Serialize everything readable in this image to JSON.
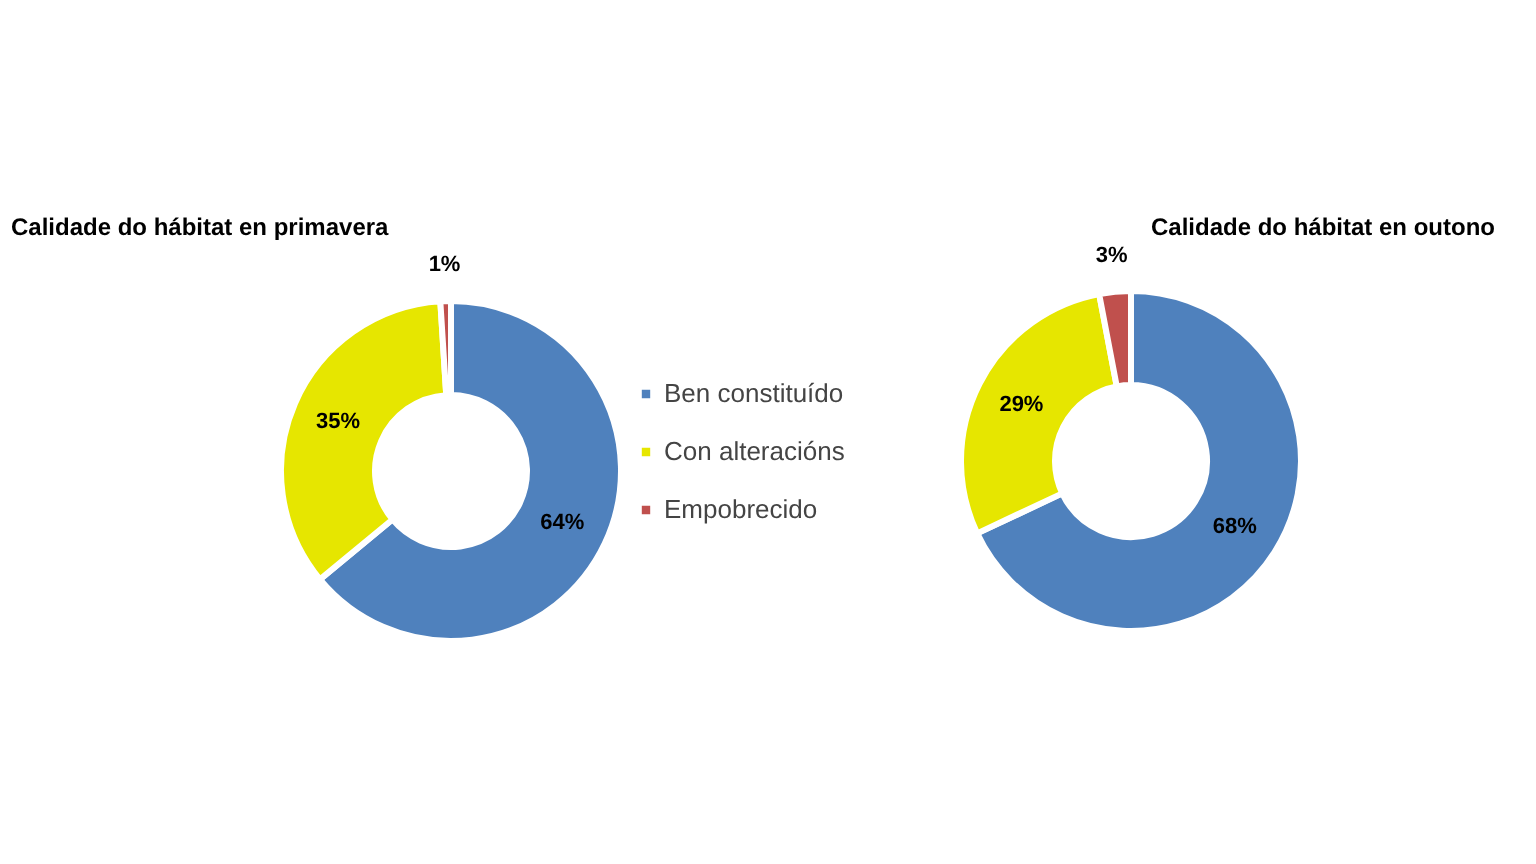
{
  "chart_data": [
    {
      "type": "donut",
      "title": "Calidade do hábitat en primavera",
      "categories": [
        "Ben constituído",
        "Con alteracións",
        "Empobrecido"
      ],
      "values": [
        64,
        35,
        1
      ],
      "colors": [
        "#4f81bd",
        "#e6e600",
        "#c0504d"
      ],
      "value_labels": [
        "64%",
        "35%",
        "1%"
      ],
      "legend": "right"
    },
    {
      "type": "donut",
      "title": "Calidade do hábitat en outono",
      "values": [
        68,
        29,
        3
      ],
      "colors": [
        "#4f81bd",
        "#e6e600",
        "#c0504d"
      ],
      "value_labels": [
        "68%",
        "29%",
        "3%"
      ]
    }
  ]
}
